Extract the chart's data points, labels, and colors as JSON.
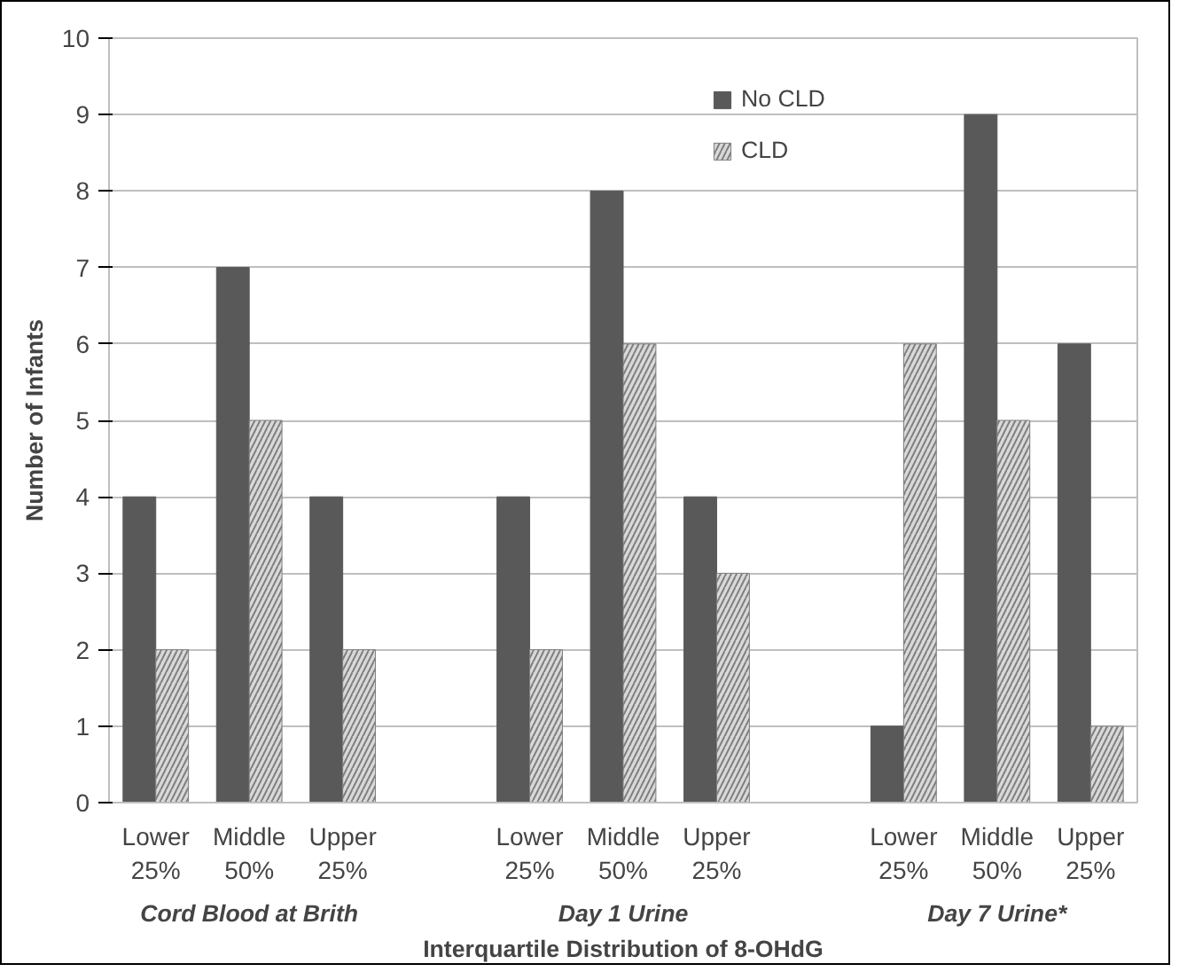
{
  "chart_data": {
    "type": "bar",
    "xlabel": "Interquartile Distribution of 8-OHdG",
    "ylabel": "Number of Infants",
    "categories": [
      "Lower\n25%",
      "Middle\n50%",
      "Upper\n25%",
      null,
      "Lower\n25%",
      "Middle\n50%",
      "Upper\n25%",
      null,
      "Lower\n25%",
      "Middle\n50%",
      "Upper\n25%"
    ],
    "series": [
      {
        "name": "No CLD",
        "color": "#595959",
        "values": [
          4,
          7,
          4,
          null,
          4,
          8,
          4,
          null,
          1,
          9,
          6
        ]
      },
      {
        "name": "CLD",
        "color": "#d9d9d9",
        "values": [
          2,
          5,
          2,
          null,
          2,
          6,
          3,
          null,
          6,
          5,
          1
        ]
      }
    ],
    "annotations": [
      "Cord Blood at Brith",
      "Day 1 Urine",
      "Day 7 Urine*"
    ],
    "ylim": [
      0,
      10
    ],
    "yticks": [
      0,
      1,
      2,
      3,
      4,
      5,
      6,
      7,
      8,
      9,
      10
    ],
    "grid": "y",
    "legend": "top"
  }
}
